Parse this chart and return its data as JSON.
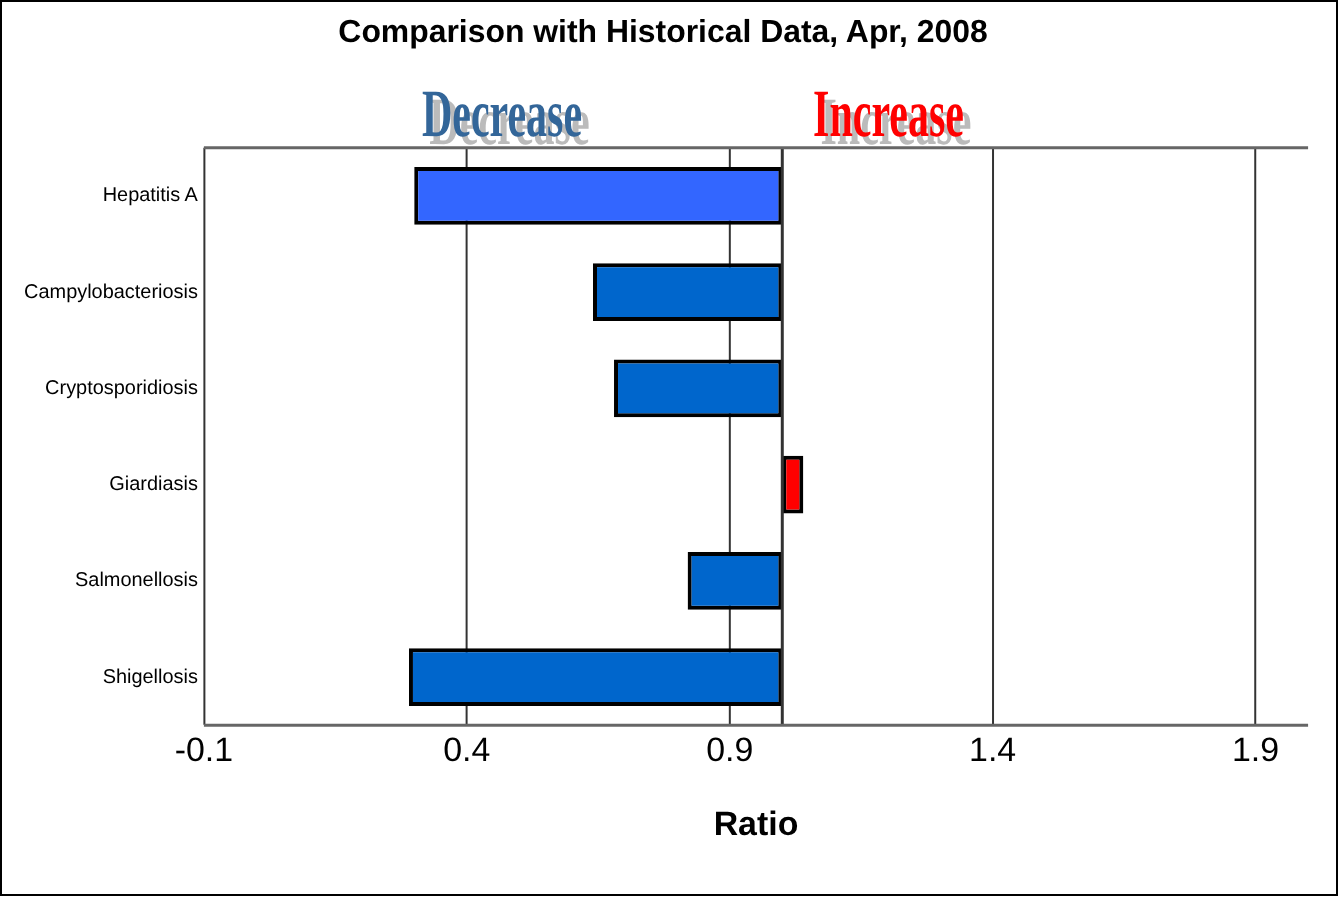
{
  "chart_data": {
    "type": "bar",
    "orientation": "horizontal",
    "title": "Comparison with Historical Data, Apr, 2008",
    "xlabel": "Ratio",
    "categories": [
      "Hepatitis A",
      "Campylobacteriosis",
      "Cryptosporidiosis",
      "Giardiasis",
      "Salmonellosis",
      "Shigellosis"
    ],
    "values": [
      -0.7,
      -0.36,
      -0.32,
      0.04,
      -0.18,
      -0.71
    ],
    "base": [
      1,
      1,
      1,
      1,
      1,
      1
    ],
    "colors": [
      "#3366ff",
      "#0066cc",
      "#0066cc",
      "#ff0000",
      "#0066cc",
      "#0066cc"
    ],
    "xlim": [
      -0.1,
      2.0
    ],
    "xticks": [
      -0.1,
      0.4,
      0.9,
      1.4,
      1.9
    ],
    "grid": "x",
    "legend": false,
    "ref_lines": [
      {
        "axis": "x",
        "value": 1,
        "color": "#333333"
      }
    ],
    "annotations": [
      "Decrease",
      "Increase"
    ]
  }
}
